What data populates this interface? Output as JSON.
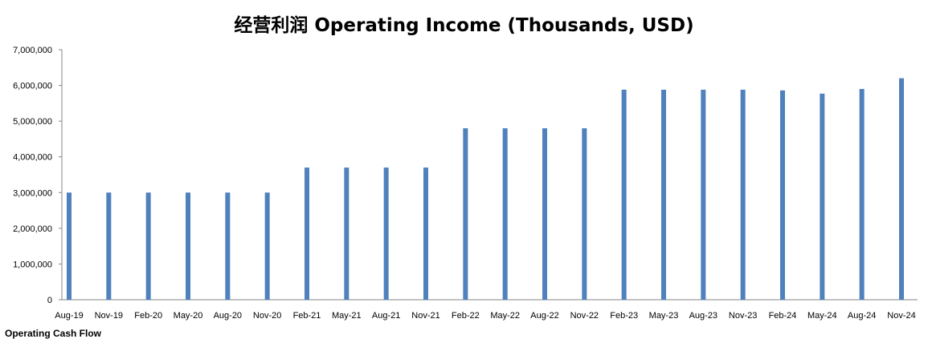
{
  "chart_data": {
    "type": "bar",
    "title": "经营利润 Operating Income (Thousands, USD)",
    "categories": [
      "Aug-19",
      "Nov-19",
      "Feb-20",
      "May-20",
      "Aug-20",
      "Nov-20",
      "Feb-21",
      "May-21",
      "Aug-21",
      "Nov-21",
      "Feb-22",
      "May-22",
      "Aug-22",
      "Nov-22",
      "Feb-23",
      "May-23",
      "Aug-23",
      "Nov-23",
      "Feb-24",
      "May-24",
      "Aug-24",
      "Nov-24"
    ],
    "values": [
      3000000,
      3000000,
      3000000,
      3000000,
      3000000,
      3000000,
      3700000,
      3700000,
      3700000,
      3700000,
      4800000,
      4800000,
      4800000,
      4800000,
      5880000,
      5880000,
      5880000,
      5880000,
      5860000,
      5770000,
      5900000,
      6200000
    ],
    "yticks": [
      "0",
      "1,000,000",
      "2,000,000",
      "3,000,000",
      "4,000,000",
      "5,000,000",
      "6,000,000",
      "7,000,000"
    ],
    "ylim": [
      0,
      7000000
    ],
    "bar_color": "#4f81bd",
    "grid": false,
    "xlabel": "",
    "ylabel": ""
  },
  "footer_fragment": "Operating Cash Flow"
}
